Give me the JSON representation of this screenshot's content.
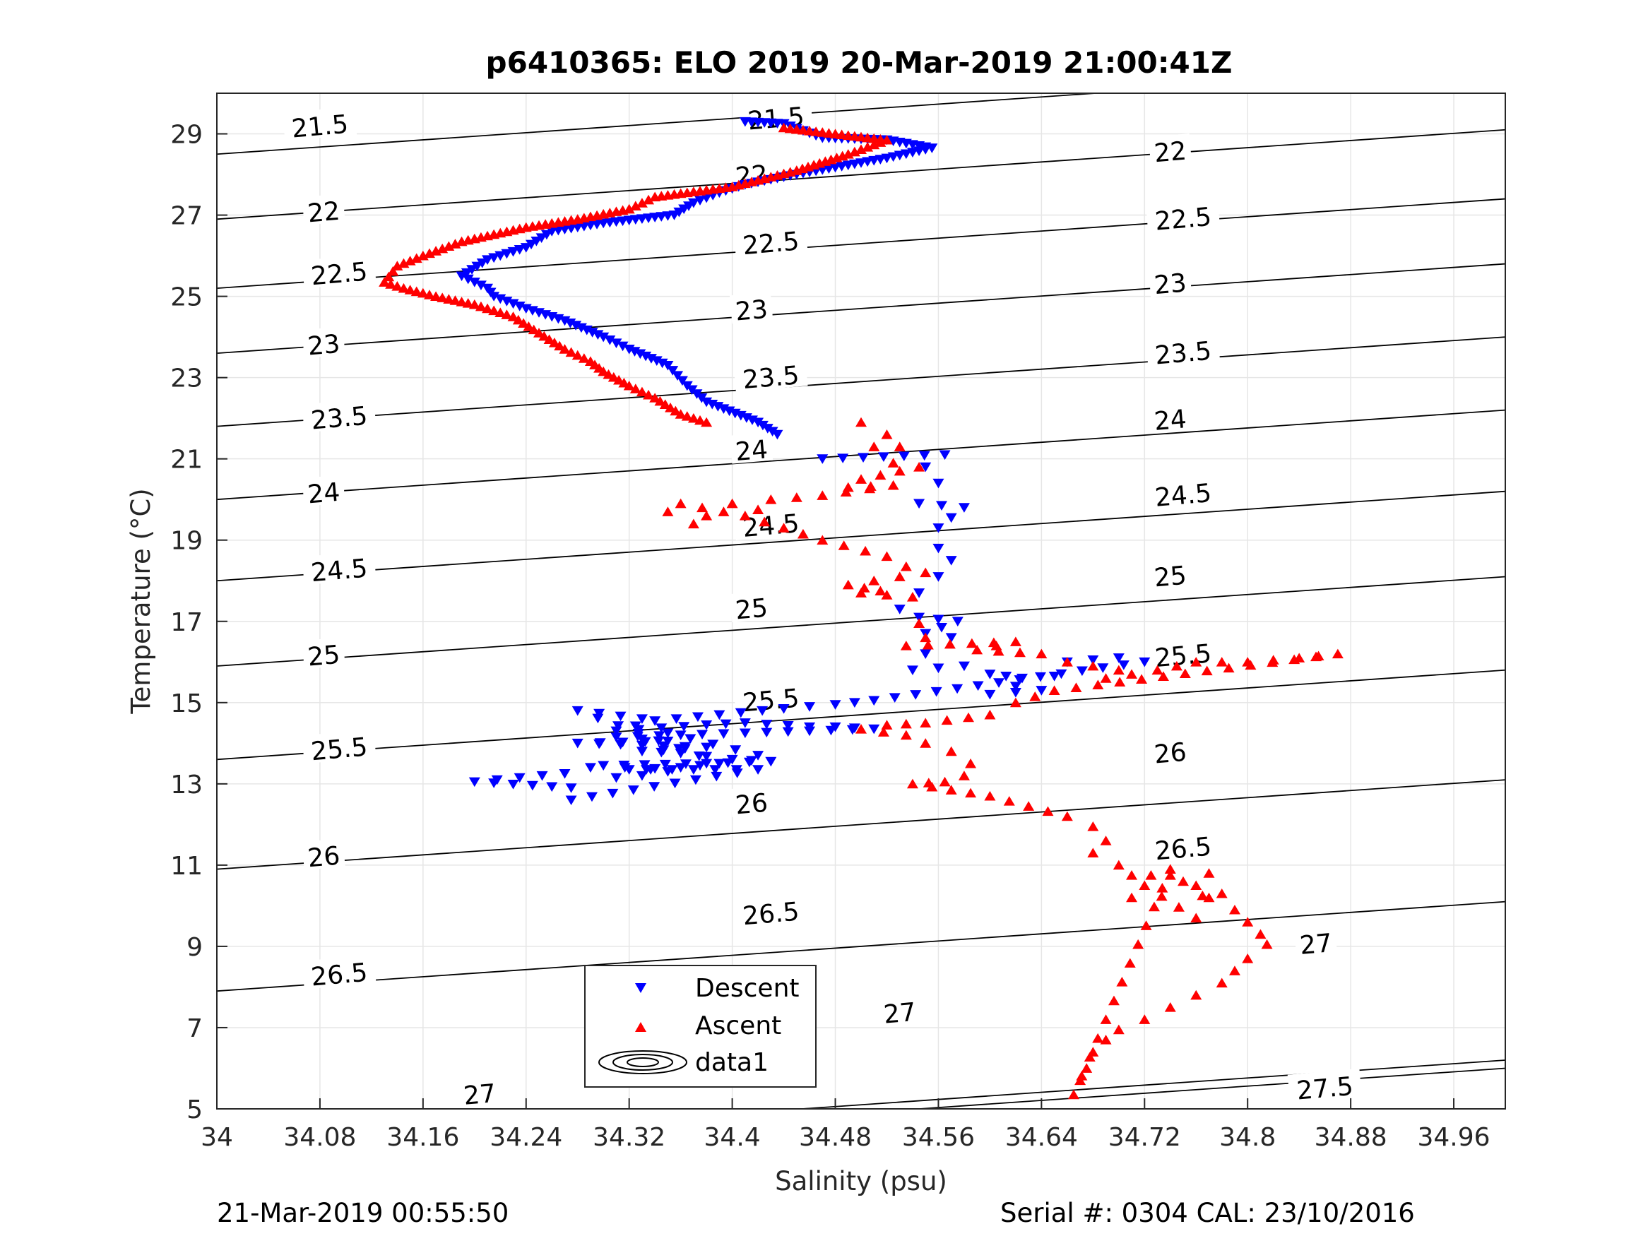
{
  "chart_data": {
    "type": "scatter",
    "title": "p6410365: ELO 2019 20-Mar-2019 21:00:41Z",
    "xlabel": "Salinity (psu)",
    "ylabel": "Temperature (°C)",
    "xlim": [
      34,
      35
    ],
    "ylim": [
      5,
      30
    ],
    "xticks": [
      "34",
      "34.08",
      "34.16",
      "34.24",
      "34.32",
      "34.4",
      "34.48",
      "34.56",
      "34.64",
      "34.72",
      "34.8",
      "34.88",
      "34.96"
    ],
    "yticks": [
      "5",
      "7",
      "9",
      "11",
      "13",
      "15",
      "17",
      "19",
      "21",
      "23",
      "25",
      "27",
      "29"
    ],
    "grid": true,
    "legend_position": "bottom-center",
    "footer_left": "21-Mar-2019 00:55:50",
    "footer_right": "Serial #: 0304  CAL: 23/10/2016",
    "colors": {
      "descent": "#0000ff",
      "ascent": "#ff0000",
      "contour": "#000000",
      "grid": "#e6e6e6"
    },
    "contours": [
      {
        "level": "21.5",
        "left_t": 28.5,
        "slope": 2.2
      },
      {
        "level": "22",
        "left_t": 26.9,
        "slope": 2.2
      },
      {
        "level": "22.5",
        "left_t": 25.2,
        "slope": 2.2
      },
      {
        "level": "23",
        "left_t": 23.6,
        "slope": 2.2
      },
      {
        "level": "23.5",
        "left_t": 21.8,
        "slope": 2.2
      },
      {
        "level": "24",
        "left_t": 20.0,
        "slope": 2.2
      },
      {
        "level": "24.5",
        "left_t": 18.0,
        "slope": 2.2
      },
      {
        "level": "25",
        "left_t": 15.9,
        "slope": 2.2
      },
      {
        "level": "25.5",
        "left_t": 13.6,
        "slope": 2.2
      },
      {
        "level": "26",
        "left_t": 10.9,
        "slope": 2.2
      },
      {
        "level": "26.5",
        "left_t": 7.9,
        "slope": 2.2
      },
      {
        "level": "27",
        "left_t": 4.0,
        "slope": 2.2
      },
      {
        "level": "27.5",
        "left_t": 3.8,
        "slope": 2.2
      }
    ],
    "contour_labels": [
      {
        "text": "21.5",
        "s": 34.08,
        "t": 29.18
      },
      {
        "text": "21.5",
        "s": 34.434,
        "t": 29.37
      },
      {
        "text": "22",
        "s": 34.083,
        "t": 27.07
      },
      {
        "text": "22",
        "s": 34.415,
        "t": 27.97
      },
      {
        "text": "22",
        "s": 34.74,
        "t": 28.55
      },
      {
        "text": "22.5",
        "s": 34.095,
        "t": 25.55
      },
      {
        "text": "22.5",
        "s": 34.43,
        "t": 26.3
      },
      {
        "text": "22.5",
        "s": 34.75,
        "t": 26.9
      },
      {
        "text": "23",
        "s": 34.083,
        "t": 23.8
      },
      {
        "text": "23",
        "s": 34.415,
        "t": 24.65
      },
      {
        "text": "23",
        "s": 34.74,
        "t": 25.3
      },
      {
        "text": "23.5",
        "s": 34.095,
        "t": 22.0
      },
      {
        "text": "23.5",
        "s": 34.43,
        "t": 23.0
      },
      {
        "text": "23.5",
        "s": 34.75,
        "t": 23.6
      },
      {
        "text": "24",
        "s": 34.083,
        "t": 20.15
      },
      {
        "text": "24",
        "s": 34.415,
        "t": 21.2
      },
      {
        "text": "24",
        "s": 34.74,
        "t": 21.95
      },
      {
        "text": "24.5",
        "s": 34.095,
        "t": 18.25
      },
      {
        "text": "24.5",
        "s": 34.43,
        "t": 19.35
      },
      {
        "text": "24.5",
        "s": 34.75,
        "t": 20.1
      },
      {
        "text": "25",
        "s": 34.083,
        "t": 16.15
      },
      {
        "text": "25",
        "s": 34.415,
        "t": 17.3
      },
      {
        "text": "25",
        "s": 34.74,
        "t": 18.1
      },
      {
        "text": "25.5",
        "s": 34.095,
        "t": 13.85
      },
      {
        "text": "25.5",
        "s": 34.43,
        "t": 15.05
      },
      {
        "text": "25.5",
        "s": 34.75,
        "t": 16.15
      },
      {
        "text": "26",
        "s": 34.083,
        "t": 11.2
      },
      {
        "text": "26",
        "s": 34.415,
        "t": 12.5
      },
      {
        "text": "26",
        "s": 34.74,
        "t": 13.75
      },
      {
        "text": "26.5",
        "s": 34.095,
        "t": 8.3
      },
      {
        "text": "26.5",
        "s": 34.43,
        "t": 9.8
      },
      {
        "text": "26.5",
        "s": 34.75,
        "t": 11.4
      },
      {
        "text": "27",
        "s": 34.204,
        "t": 5.35
      },
      {
        "text": "27",
        "s": 34.53,
        "t": 7.35
      },
      {
        "text": "27",
        "s": 34.853,
        "t": 9.05
      },
      {
        "text": "27.5",
        "s": 34.86,
        "t": 5.5
      }
    ],
    "series": [
      {
        "name": "Descent",
        "marker": "triangle-down",
        "color": "#0000ff",
        "trace": [
          [
            34.41,
            29.3
          ],
          [
            34.44,
            29.25
          ],
          [
            34.47,
            28.9
          ],
          [
            34.52,
            28.85
          ],
          [
            34.555,
            28.65
          ],
          [
            34.52,
            28.4
          ],
          [
            34.45,
            28.0
          ],
          [
            34.41,
            27.75
          ],
          [
            34.39,
            27.55
          ],
          [
            34.37,
            27.3
          ],
          [
            34.355,
            27.0
          ],
          [
            34.3,
            26.8
          ],
          [
            34.26,
            26.6
          ],
          [
            34.24,
            26.2
          ],
          [
            34.21,
            25.9
          ],
          [
            34.19,
            25.5
          ],
          [
            34.21,
            25.2
          ],
          [
            34.215,
            25.0
          ],
          [
            34.24,
            24.7
          ],
          [
            34.27,
            24.4
          ],
          [
            34.3,
            24.0
          ],
          [
            34.32,
            23.7
          ],
          [
            34.35,
            23.3
          ],
          [
            34.365,
            22.8
          ],
          [
            34.38,
            22.4
          ],
          [
            34.42,
            21.9
          ],
          [
            34.435,
            21.6
          ]
        ],
        "points": [
          [
            34.47,
            21.0
          ],
          [
            34.565,
            21.1
          ],
          [
            34.55,
            20.8
          ],
          [
            34.56,
            20.4
          ],
          [
            34.545,
            19.9
          ],
          [
            34.58,
            19.8
          ],
          [
            34.56,
            19.3
          ],
          [
            34.56,
            18.8
          ],
          [
            34.57,
            18.5
          ],
          [
            34.56,
            18.1
          ],
          [
            34.545,
            17.7
          ],
          [
            34.53,
            17.3
          ],
          [
            34.545,
            17.1
          ],
          [
            34.575,
            17.0
          ],
          [
            34.55,
            16.7
          ],
          [
            34.57,
            16.6
          ],
          [
            34.55,
            16.2
          ],
          [
            34.54,
            15.8
          ],
          [
            34.58,
            15.9
          ],
          [
            34.6,
            15.7
          ],
          [
            34.625,
            15.6
          ],
          [
            34.62,
            15.4
          ],
          [
            34.6,
            15.2
          ],
          [
            34.64,
            15.3
          ],
          [
            34.66,
            16.0
          ],
          [
            34.7,
            16.1
          ],
          [
            34.72,
            16.0
          ],
          [
            34.51,
            15.05
          ],
          [
            34.48,
            14.95
          ],
          [
            34.44,
            14.85
          ],
          [
            34.34,
            14.55
          ],
          [
            34.31,
            14.3
          ],
          [
            34.38,
            14.45
          ],
          [
            34.41,
            14.5
          ],
          [
            34.46,
            14.4
          ],
          [
            34.48,
            14.4
          ],
          [
            34.51,
            14.35
          ],
          [
            34.31,
            14.15
          ],
          [
            34.35,
            14.05
          ],
          [
            34.28,
            14.0
          ],
          [
            34.38,
            13.9
          ],
          [
            34.33,
            13.8
          ],
          [
            34.36,
            13.75
          ],
          [
            34.4,
            13.6
          ],
          [
            34.43,
            13.55
          ],
          [
            34.38,
            13.5
          ],
          [
            34.3,
            13.45
          ],
          [
            34.35,
            13.3
          ],
          [
            34.33,
            13.2
          ],
          [
            34.31,
            13.15
          ],
          [
            34.29,
            13.4
          ],
          [
            34.27,
            13.25
          ],
          [
            34.2,
            13.05
          ],
          [
            34.275,
            12.9
          ],
          [
            34.275,
            12.6
          ],
          [
            34.42,
            13.35
          ],
          [
            34.32,
            13.35
          ],
          [
            34.36,
            13.4
          ],
          [
            34.39,
            13.5
          ],
          [
            34.28,
            14.8
          ],
          [
            34.33,
            14.6
          ],
          [
            34.35,
            14.25
          ],
          [
            34.42,
            13.7
          ]
        ]
      },
      {
        "name": "Ascent",
        "marker": "triangle-up",
        "color": "#ff0000",
        "trace": [
          [
            34.44,
            29.15
          ],
          [
            34.48,
            29.0
          ],
          [
            34.52,
            28.85
          ],
          [
            34.49,
            28.5
          ],
          [
            34.45,
            28.1
          ],
          [
            34.4,
            27.7
          ],
          [
            34.34,
            27.45
          ],
          [
            34.32,
            27.15
          ],
          [
            34.28,
            26.9
          ],
          [
            34.24,
            26.7
          ],
          [
            34.19,
            26.35
          ],
          [
            34.16,
            26.0
          ],
          [
            34.14,
            25.75
          ],
          [
            34.13,
            25.35
          ],
          [
            34.145,
            25.2
          ],
          [
            34.17,
            25.0
          ],
          [
            34.2,
            24.8
          ],
          [
            34.23,
            24.5
          ],
          [
            34.25,
            24.1
          ],
          [
            34.27,
            23.7
          ],
          [
            34.29,
            23.4
          ],
          [
            34.3,
            23.15
          ],
          [
            34.32,
            22.8
          ],
          [
            34.34,
            22.5
          ],
          [
            34.36,
            22.1
          ],
          [
            34.38,
            21.9
          ]
        ],
        "points": [
          [
            34.5,
            21.9
          ],
          [
            34.52,
            21.6
          ],
          [
            34.51,
            21.3
          ],
          [
            34.53,
            21.3
          ],
          [
            34.525,
            20.9
          ],
          [
            34.545,
            20.8
          ],
          [
            34.5,
            20.5
          ],
          [
            34.49,
            20.3
          ],
          [
            34.525,
            20.35
          ],
          [
            34.47,
            20.1
          ],
          [
            34.43,
            20.0
          ],
          [
            34.42,
            19.75
          ],
          [
            34.4,
            19.9
          ],
          [
            34.38,
            19.6
          ],
          [
            34.37,
            19.4
          ],
          [
            34.35,
            19.7
          ],
          [
            34.36,
            19.9
          ],
          [
            34.41,
            19.6
          ],
          [
            34.44,
            19.3
          ],
          [
            34.47,
            19.0
          ],
          [
            34.52,
            18.6
          ],
          [
            34.535,
            18.35
          ],
          [
            34.55,
            18.2
          ],
          [
            34.51,
            18.0
          ],
          [
            34.49,
            17.9
          ],
          [
            34.515,
            17.75
          ],
          [
            34.5,
            17.7
          ],
          [
            34.54,
            17.6
          ],
          [
            34.545,
            16.95
          ],
          [
            34.55,
            16.6
          ],
          [
            34.535,
            16.4
          ],
          [
            34.62,
            16.5
          ],
          [
            34.59,
            16.3
          ],
          [
            34.64,
            16.2
          ],
          [
            34.66,
            16.0
          ],
          [
            34.7,
            15.8
          ],
          [
            34.69,
            15.6
          ],
          [
            34.73,
            15.8
          ],
          [
            34.76,
            16.0
          ],
          [
            34.8,
            16.0
          ],
          [
            34.84,
            16.1
          ],
          [
            34.87,
            16.2
          ],
          [
            34.65,
            15.3
          ],
          [
            34.62,
            15.0
          ],
          [
            34.6,
            14.7
          ],
          [
            34.55,
            14.5
          ],
          [
            34.52,
            14.45
          ],
          [
            34.5,
            14.35
          ],
          [
            34.535,
            14.2
          ],
          [
            34.55,
            14.0
          ],
          [
            34.57,
            13.8
          ],
          [
            34.585,
            13.5
          ],
          [
            34.58,
            13.2
          ],
          [
            34.565,
            13.05
          ],
          [
            34.54,
            13.0
          ],
          [
            34.6,
            12.7
          ],
          [
            34.63,
            12.45
          ],
          [
            34.66,
            12.2
          ],
          [
            34.68,
            11.95
          ],
          [
            34.69,
            11.6
          ],
          [
            34.68,
            11.3
          ],
          [
            34.7,
            11.0
          ],
          [
            34.71,
            10.75
          ],
          [
            34.74,
            10.75
          ],
          [
            34.76,
            10.5
          ],
          [
            34.78,
            10.3
          ],
          [
            34.77,
            10.2
          ],
          [
            34.79,
            9.9
          ],
          [
            34.8,
            9.6
          ],
          [
            34.81,
            9.3
          ],
          [
            34.815,
            9.05
          ],
          [
            34.8,
            8.7
          ],
          [
            34.79,
            8.4
          ],
          [
            34.78,
            8.1
          ],
          [
            34.76,
            7.8
          ],
          [
            34.74,
            7.5
          ],
          [
            34.72,
            7.2
          ],
          [
            34.7,
            6.95
          ],
          [
            34.69,
            6.7
          ],
          [
            34.68,
            6.4
          ],
          [
            34.675,
            6.0
          ],
          [
            34.67,
            5.7
          ],
          [
            34.665,
            5.35
          ],
          [
            34.74,
            10.9
          ],
          [
            34.75,
            10.6
          ],
          [
            34.77,
            10.8
          ],
          [
            34.76,
            9.7
          ],
          [
            34.72,
            10.5
          ],
          [
            34.71,
            10.2
          ]
        ]
      }
    ],
    "legend": [
      {
        "label": "Descent",
        "symbol": "triangle-down",
        "color": "#0000ff"
      },
      {
        "label": "Ascent",
        "symbol": "triangle-up",
        "color": "#ff0000"
      },
      {
        "label": "data1",
        "symbol": "contour",
        "color": "#000000"
      }
    ]
  }
}
